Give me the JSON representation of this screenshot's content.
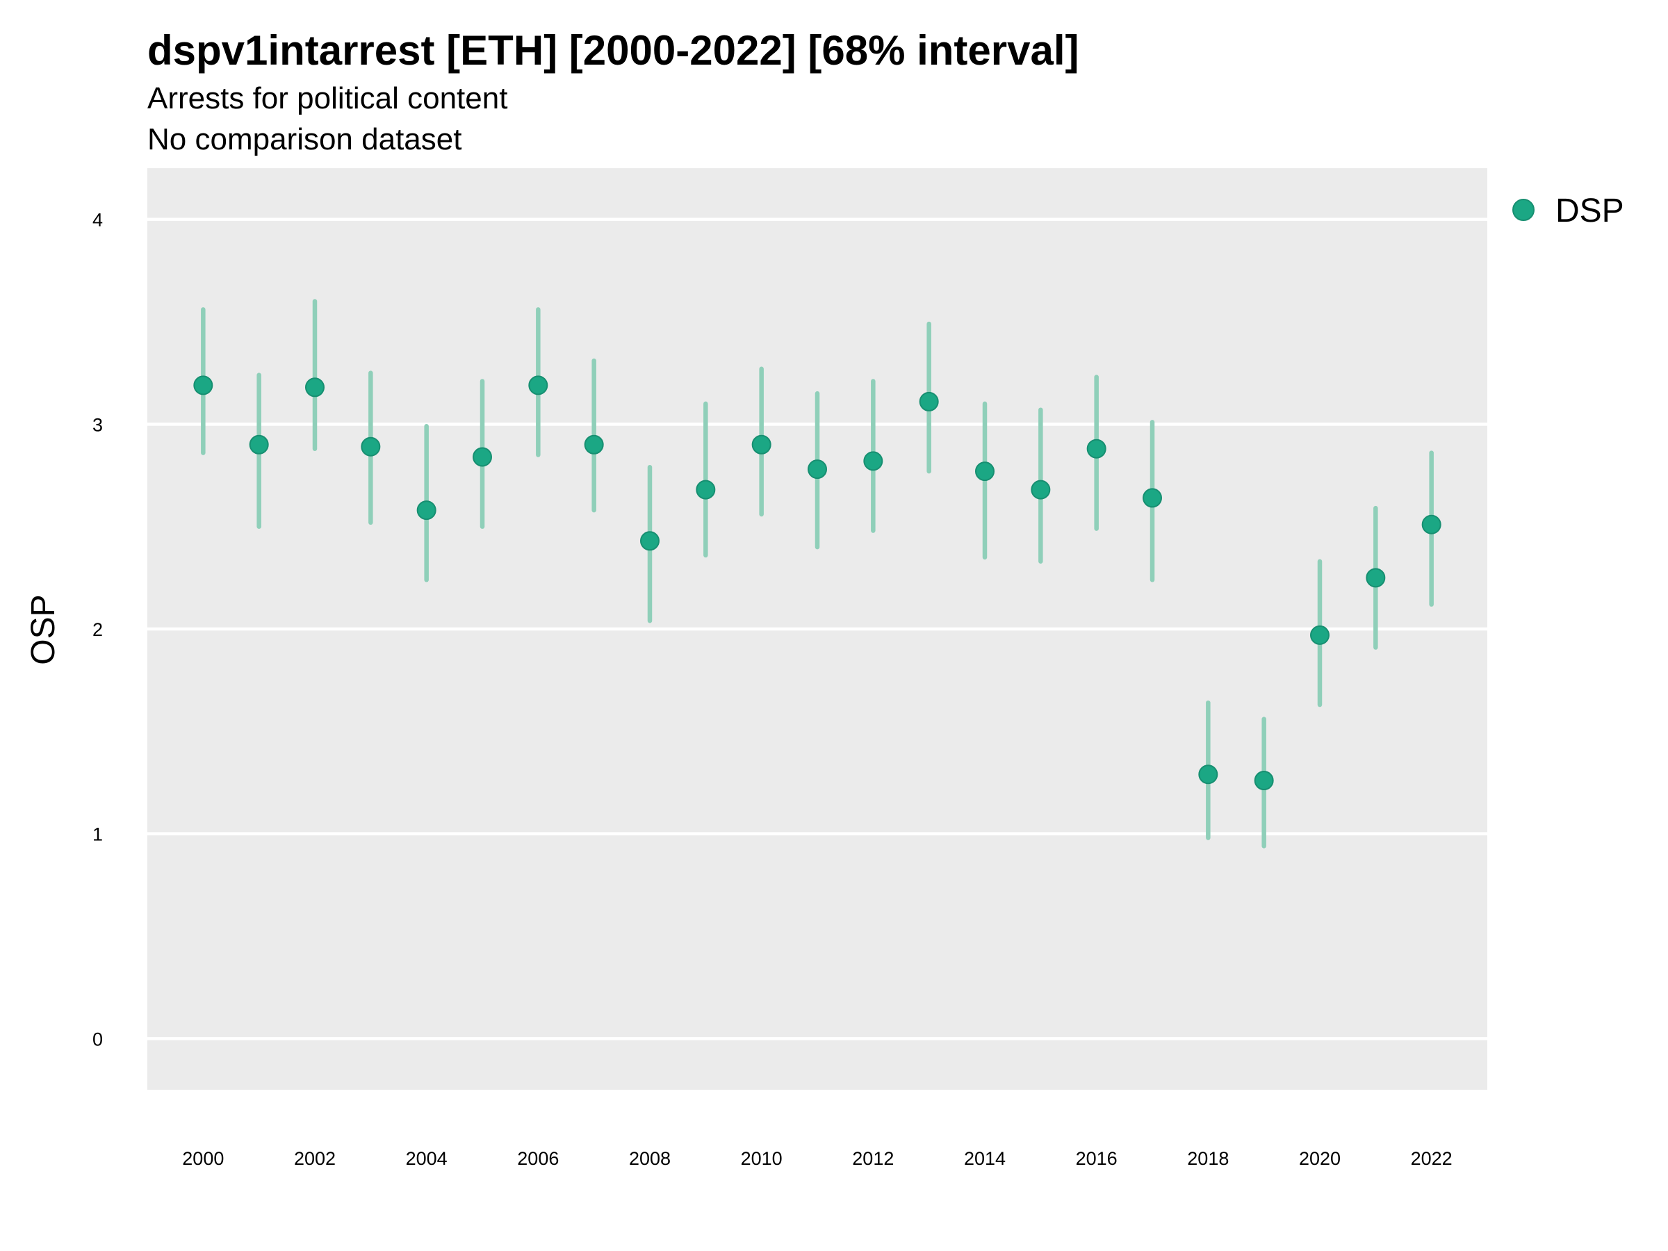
{
  "chart_data": {
    "type": "scatter",
    "title": "dspv1intarrest [ETH] [2000-2022] [68% interval]",
    "subtitle_lines": [
      "Arrests for political content",
      "No comparison dataset"
    ],
    "xlabel": "",
    "ylabel": "OSP",
    "xlim": [
      1999.0,
      2023.0
    ],
    "ylim": [
      -0.25,
      4.25
    ],
    "x_ticks": [
      2000,
      2002,
      2004,
      2006,
      2008,
      2010,
      2012,
      2014,
      2016,
      2018,
      2020,
      2022
    ],
    "y_ticks": [
      0,
      1,
      2,
      3,
      4
    ],
    "grid": true,
    "legend_position": "top-right",
    "series": [
      {
        "name": "DSP",
        "color": "#1ba784",
        "interval_color": "#8fcfb9",
        "points": [
          {
            "x": 2000,
            "y": 3.19,
            "lo": 2.86,
            "hi": 3.56
          },
          {
            "x": 2001,
            "y": 2.9,
            "lo": 2.5,
            "hi": 3.24
          },
          {
            "x": 2002,
            "y": 3.18,
            "lo": 2.88,
            "hi": 3.6
          },
          {
            "x": 2003,
            "y": 2.89,
            "lo": 2.52,
            "hi": 3.25
          },
          {
            "x": 2004,
            "y": 2.58,
            "lo": 2.24,
            "hi": 2.99
          },
          {
            "x": 2005,
            "y": 2.84,
            "lo": 2.5,
            "hi": 3.21
          },
          {
            "x": 2006,
            "y": 3.19,
            "lo": 2.85,
            "hi": 3.56
          },
          {
            "x": 2007,
            "y": 2.9,
            "lo": 2.58,
            "hi": 3.31
          },
          {
            "x": 2008,
            "y": 2.43,
            "lo": 2.04,
            "hi": 2.79
          },
          {
            "x": 2009,
            "y": 2.68,
            "lo": 2.36,
            "hi": 3.1
          },
          {
            "x": 2010,
            "y": 2.9,
            "lo": 2.56,
            "hi": 3.27
          },
          {
            "x": 2011,
            "y": 2.78,
            "lo": 2.4,
            "hi": 3.15
          },
          {
            "x": 2012,
            "y": 2.82,
            "lo": 2.48,
            "hi": 3.21
          },
          {
            "x": 2013,
            "y": 3.11,
            "lo": 2.77,
            "hi": 3.49
          },
          {
            "x": 2014,
            "y": 2.77,
            "lo": 2.35,
            "hi": 3.1
          },
          {
            "x": 2015,
            "y": 2.68,
            "lo": 2.33,
            "hi": 3.07
          },
          {
            "x": 2016,
            "y": 2.88,
            "lo": 2.49,
            "hi": 3.23
          },
          {
            "x": 2017,
            "y": 2.64,
            "lo": 2.24,
            "hi": 3.01
          },
          {
            "x": 2018,
            "y": 1.29,
            "lo": 0.98,
            "hi": 1.64
          },
          {
            "x": 2019,
            "y": 1.26,
            "lo": 0.94,
            "hi": 1.56
          },
          {
            "x": 2020,
            "y": 1.97,
            "lo": 1.63,
            "hi": 2.33
          },
          {
            "x": 2021,
            "y": 2.25,
            "lo": 1.91,
            "hi": 2.59
          },
          {
            "x": 2022,
            "y": 2.51,
            "lo": 2.12,
            "hi": 2.86
          }
        ]
      }
    ]
  }
}
